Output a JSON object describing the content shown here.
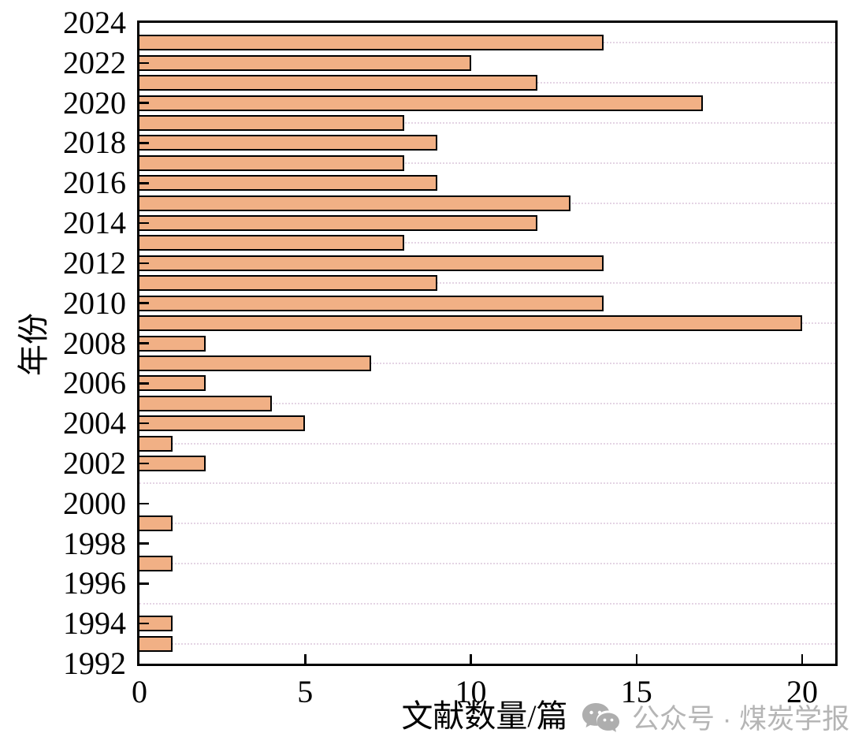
{
  "watermark": {
    "icon": "wechat-icon",
    "text": "公众号 · 煤炭学报",
    "color": "#b5b5b5"
  },
  "chart_data": {
    "type": "bar",
    "orientation": "horizontal",
    "title": "",
    "xlabel": "文献数量/篇",
    "ylabel": "年份",
    "x_axis": {
      "min": 0,
      "max": 21,
      "major_ticks": [
        0,
        5,
        10,
        15,
        20
      ],
      "tick_labels": [
        "0",
        "5",
        "10",
        "15",
        "20"
      ]
    },
    "y_axis": {
      "min": 1992,
      "max": 2024,
      "tick_step": 2,
      "tick_labels": [
        "2024",
        "2022",
        "2020",
        "2018",
        "2016",
        "2014",
        "2012",
        "2010",
        "2008",
        "2006",
        "2004",
        "2002",
        "2000",
        "1998",
        "1996",
        "1994",
        "1992"
      ]
    },
    "grid": {
      "show": true,
      "style": "dotted",
      "color": "#e4d4e4",
      "at": "odd-years"
    },
    "gridline_years": [
      1993,
      1995,
      1997,
      1999,
      2001,
      2003,
      2005,
      2007,
      2009,
      2011,
      2013,
      2015,
      2017,
      2019,
      2021,
      2023
    ],
    "bar_color": "#F1B085",
    "bar_border_color": "#000000",
    "series": [
      {
        "year": 1993,
        "value": 1
      },
      {
        "year": 1994,
        "value": 1
      },
      {
        "year": 1995,
        "value": 0
      },
      {
        "year": 1996,
        "value": 0
      },
      {
        "year": 1997,
        "value": 1
      },
      {
        "year": 1998,
        "value": 0
      },
      {
        "year": 1999,
        "value": 1
      },
      {
        "year": 2000,
        "value": 0
      },
      {
        "year": 2001,
        "value": 0
      },
      {
        "year": 2002,
        "value": 2
      },
      {
        "year": 2003,
        "value": 1
      },
      {
        "year": 2004,
        "value": 5
      },
      {
        "year": 2005,
        "value": 4
      },
      {
        "year": 2006,
        "value": 2
      },
      {
        "year": 2007,
        "value": 7
      },
      {
        "year": 2008,
        "value": 2
      },
      {
        "year": 2009,
        "value": 20
      },
      {
        "year": 2010,
        "value": 14
      },
      {
        "year": 2011,
        "value": 9
      },
      {
        "year": 2012,
        "value": 14
      },
      {
        "year": 2013,
        "value": 8
      },
      {
        "year": 2014,
        "value": 12
      },
      {
        "year": 2015,
        "value": 13
      },
      {
        "year": 2016,
        "value": 9
      },
      {
        "year": 2017,
        "value": 8
      },
      {
        "year": 2018,
        "value": 9
      },
      {
        "year": 2019,
        "value": 8
      },
      {
        "year": 2020,
        "value": 17
      },
      {
        "year": 2021,
        "value": 12
      },
      {
        "year": 2022,
        "value": 10
      },
      {
        "year": 2023,
        "value": 14
      }
    ]
  }
}
